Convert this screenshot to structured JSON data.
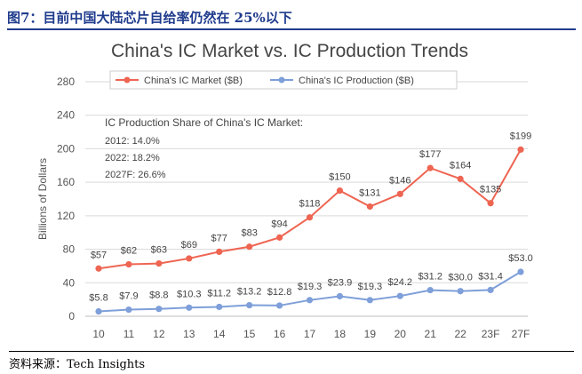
{
  "figure_label": "图7：目前中国大陆芯片自给率仍然在 25%以下",
  "source": "资料来源：Tech Insights",
  "colors": {
    "market": "#ee6552",
    "production": "#7e9fd9",
    "header": "#1f3b8c"
  },
  "chart_data": {
    "type": "line",
    "title": "China's IC Market vs. IC Production Trends",
    "xlabel": "",
    "ylabel": "Billions of Dollars",
    "ylim": [
      0,
      280
    ],
    "yticks": [
      0,
      40,
      80,
      120,
      160,
      200,
      240,
      280
    ],
    "grid": true,
    "legend_position": "top",
    "categories": [
      "10",
      "11",
      "12",
      "13",
      "14",
      "15",
      "16",
      "17",
      "18",
      "19",
      "20",
      "21",
      "22",
      "23F",
      "27F"
    ],
    "series": [
      {
        "name": "China's IC Market ($B)",
        "values": [
          57,
          62,
          63,
          69,
          77,
          83,
          94,
          118,
          150,
          131,
          146,
          177,
          164,
          135,
          199
        ],
        "labels": [
          "$57",
          "$62",
          "$63",
          "$69",
          "$77",
          "$83",
          "$94",
          "$118",
          "$150",
          "$131",
          "$146",
          "$177",
          "$164",
          "$135",
          "$199"
        ]
      },
      {
        "name": "China's IC Production ($B)",
        "values": [
          5.8,
          7.9,
          8.8,
          10.3,
          11.2,
          13.2,
          12.8,
          19.3,
          23.9,
          19.3,
          24.2,
          31.2,
          30.0,
          31.4,
          53.0
        ],
        "labels": [
          "$5.8",
          "$7.9",
          "$8.8",
          "$10.3",
          "$11.2",
          "$13.2",
          "$12.8",
          "$19.3",
          "$23.9",
          "$19.3",
          "$24.2",
          "$31.2",
          "$30.0",
          "$31.4",
          "$53.0"
        ]
      }
    ],
    "annotation": {
      "title": "IC Production Share of China's IC Market:",
      "lines": [
        "2012: 14.0%",
        "2022: 18.2%",
        "2027F: 26.6%"
      ]
    }
  }
}
